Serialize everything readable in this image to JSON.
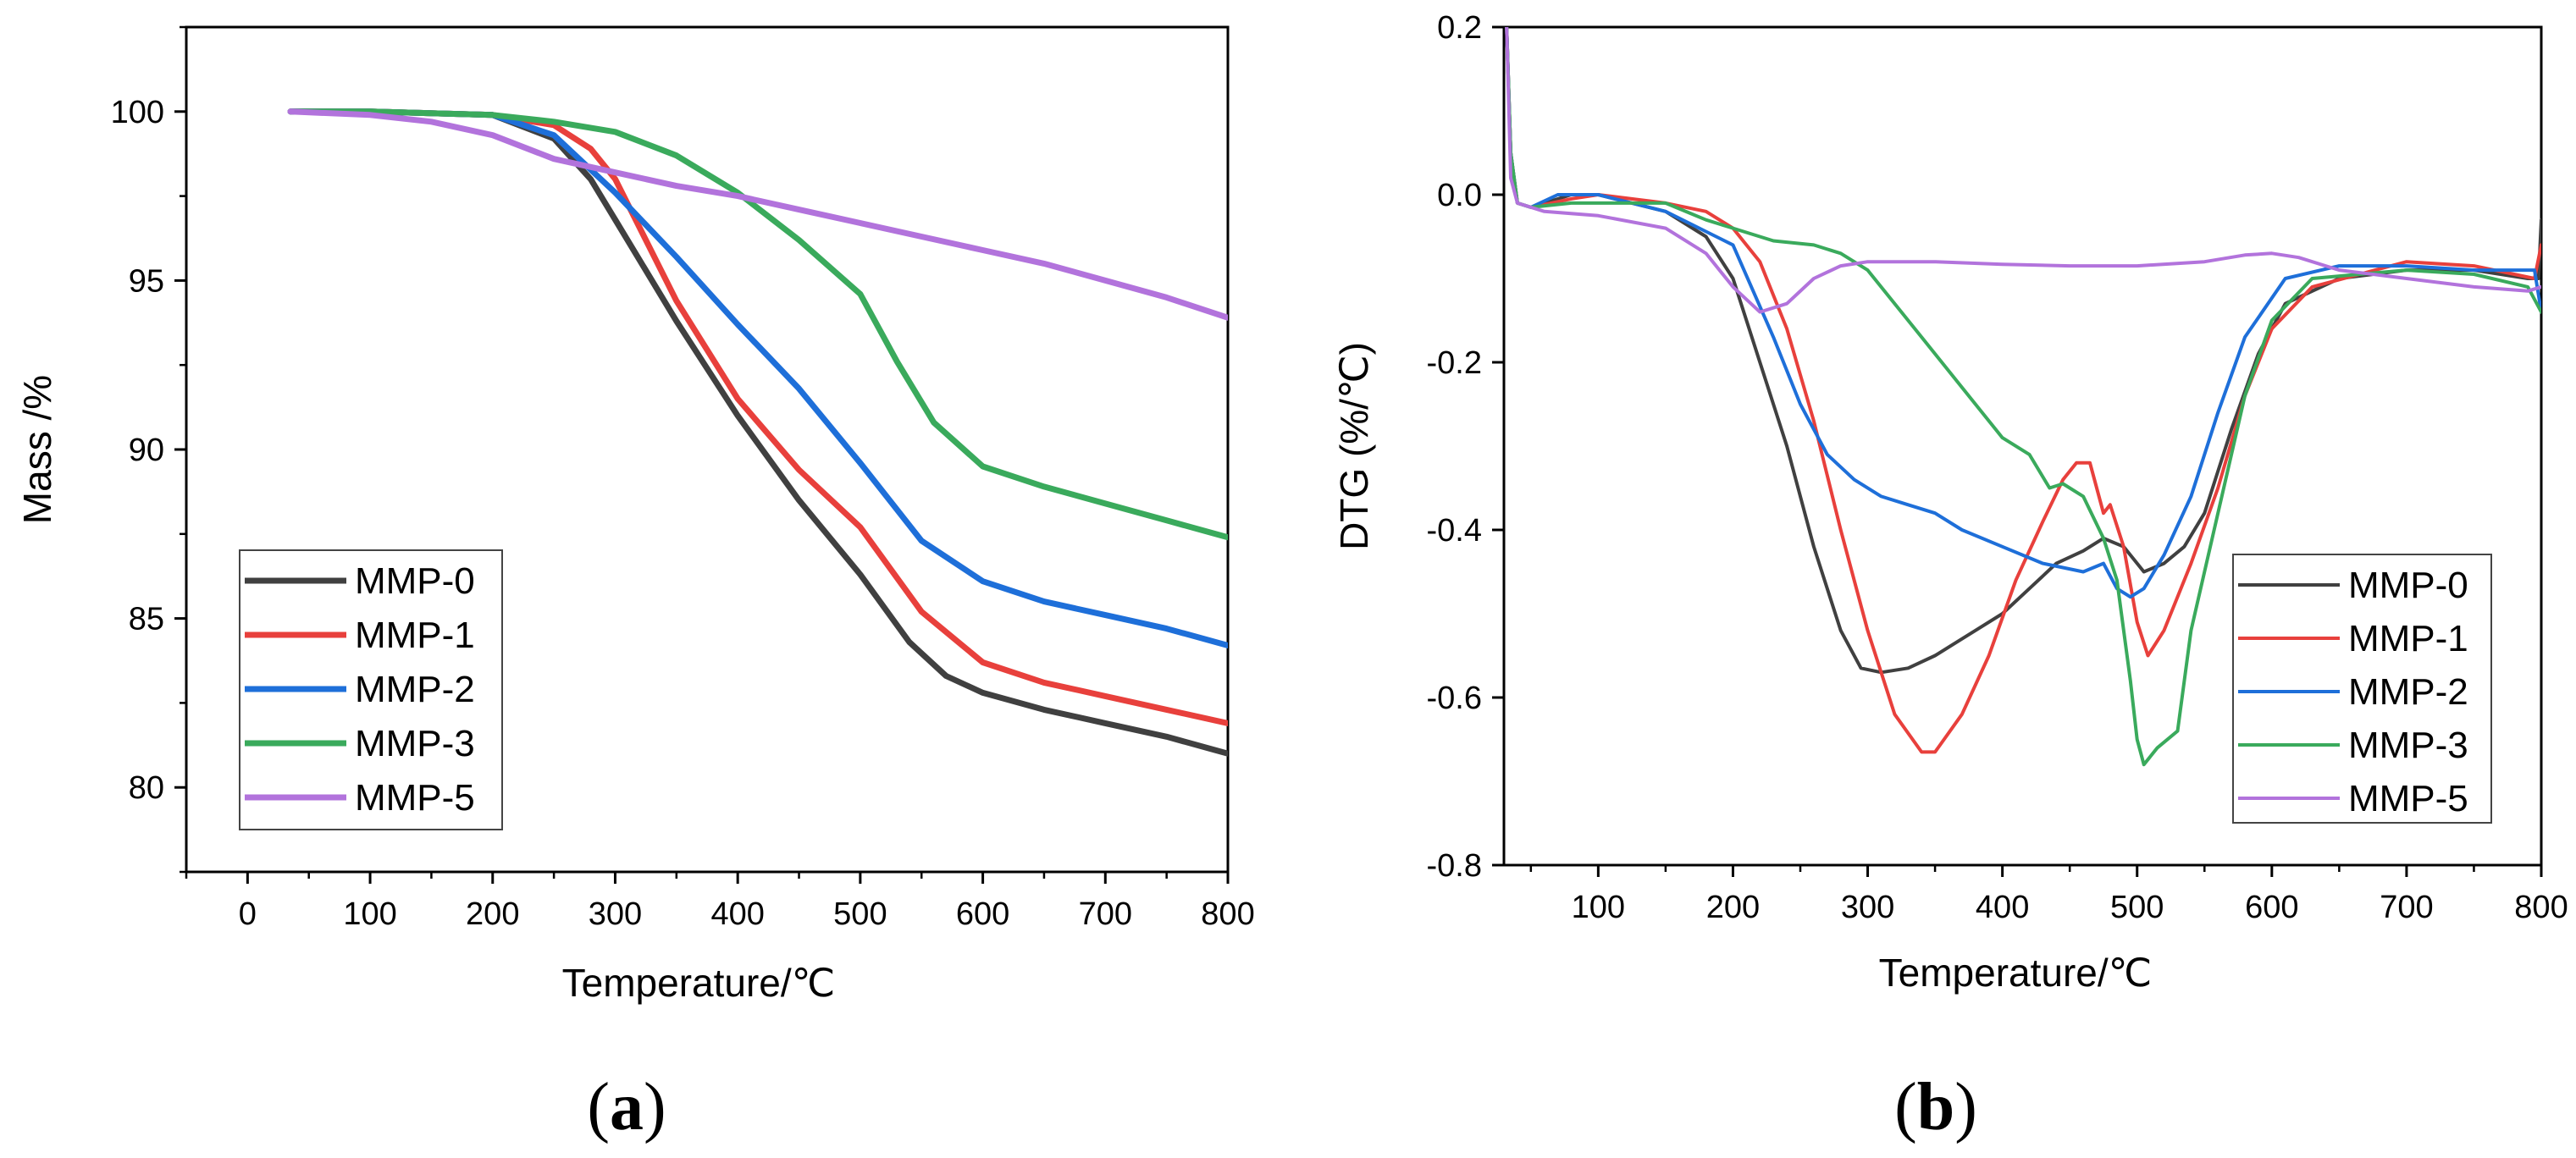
{
  "chart_data": [
    {
      "type": "line",
      "panel_label": "a",
      "xlabel": "Temperature/℃",
      "ylabel": "Mass /%",
      "xlim": [
        -50,
        800
      ],
      "ylim": [
        77.5,
        102.5
      ],
      "xticks": [
        0,
        100,
        200,
        300,
        400,
        500,
        600,
        700,
        800
      ],
      "yticks": [
        80,
        85,
        90,
        95,
        100
      ],
      "legend_position": "lower-left",
      "series": [
        {
          "name": "MMP-0",
          "color": "#404040",
          "points": [
            [
              35,
              100
            ],
            [
              100,
              100
            ],
            [
              200,
              99.9
            ],
            [
              250,
              99.2
            ],
            [
              280,
              98
            ],
            [
              300,
              96.8
            ],
            [
              350,
              93.8
            ],
            [
              400,
              91
            ],
            [
              450,
              88.5
            ],
            [
              500,
              86.3
            ],
            [
              540,
              84.3
            ],
            [
              570,
              83.3
            ],
            [
              600,
              82.8
            ],
            [
              650,
              82.3
            ],
            [
              700,
              81.9
            ],
            [
              750,
              81.5
            ],
            [
              800,
              81
            ]
          ]
        },
        {
          "name": "MMP-1",
          "color": "#e8403c",
          "points": [
            [
              35,
              100
            ],
            [
              100,
              100
            ],
            [
              200,
              99.9
            ],
            [
              250,
              99.6
            ],
            [
              280,
              98.9
            ],
            [
              300,
              98
            ],
            [
              350,
              94.4
            ],
            [
              400,
              91.5
            ],
            [
              450,
              89.4
            ],
            [
              500,
              87.7
            ],
            [
              550,
              85.2
            ],
            [
              600,
              83.7
            ],
            [
              650,
              83.1
            ],
            [
              700,
              82.7
            ],
            [
              750,
              82.3
            ],
            [
              800,
              81.9
            ]
          ]
        },
        {
          "name": "MMP-2",
          "color": "#1e6fd9",
          "points": [
            [
              35,
              100
            ],
            [
              100,
              100
            ],
            [
              200,
              99.9
            ],
            [
              250,
              99.3
            ],
            [
              300,
              97.6
            ],
            [
              350,
              95.7
            ],
            [
              400,
              93.7
            ],
            [
              450,
              91.8
            ],
            [
              500,
              89.6
            ],
            [
              550,
              87.3
            ],
            [
              600,
              86.1
            ],
            [
              650,
              85.5
            ],
            [
              700,
              85.1
            ],
            [
              750,
              84.7
            ],
            [
              800,
              84.2
            ]
          ]
        },
        {
          "name": "MMP-3",
          "color": "#3aaa5c",
          "points": [
            [
              35,
              100
            ],
            [
              100,
              100
            ],
            [
              200,
              99.9
            ],
            [
              250,
              99.7
            ],
            [
              300,
              99.4
            ],
            [
              350,
              98.7
            ],
            [
              400,
              97.6
            ],
            [
              450,
              96.2
            ],
            [
              500,
              94.6
            ],
            [
              530,
              92.6
            ],
            [
              560,
              90.8
            ],
            [
              600,
              89.5
            ],
            [
              650,
              88.9
            ],
            [
              700,
              88.4
            ],
            [
              750,
              87.9
            ],
            [
              800,
              87.4
            ]
          ]
        },
        {
          "name": "MMP-5",
          "color": "#b273dc",
          "points": [
            [
              35,
              100
            ],
            [
              100,
              99.9
            ],
            [
              150,
              99.7
            ],
            [
              200,
              99.3
            ],
            [
              250,
              98.6
            ],
            [
              300,
              98.2
            ],
            [
              350,
              97.8
            ],
            [
              400,
              97.5
            ],
            [
              450,
              97.1
            ],
            [
              500,
              96.7
            ],
            [
              550,
              96.3
            ],
            [
              600,
              95.9
            ],
            [
              650,
              95.5
            ],
            [
              700,
              95
            ],
            [
              750,
              94.5
            ],
            [
              800,
              93.9
            ]
          ]
        }
      ]
    },
    {
      "type": "line",
      "panel_label": "b",
      "xlabel": "Temperature/℃",
      "ylabel": "DTG (%/℃)",
      "xlim": [
        30,
        800
      ],
      "ylim": [
        -0.8,
        0.2
      ],
      "xticks": [
        100,
        200,
        300,
        400,
        500,
        600,
        700,
        800
      ],
      "yticks": [
        -0.8,
        -0.6,
        -0.4,
        -0.2,
        0.0,
        0.2
      ],
      "legend_position": "lower-right",
      "series": [
        {
          "name": "MMP-0",
          "color": "#404040",
          "points": [
            [
              32,
              0.2
            ],
            [
              35,
              0.05
            ],
            [
              40,
              -0.01
            ],
            [
              50,
              -0.015
            ],
            [
              80,
              0
            ],
            [
              100,
              0
            ],
            [
              150,
              -0.02
            ],
            [
              180,
              -0.05
            ],
            [
              200,
              -0.1
            ],
            [
              220,
              -0.2
            ],
            [
              240,
              -0.3
            ],
            [
              260,
              -0.42
            ],
            [
              280,
              -0.52
            ],
            [
              295,
              -0.565
            ],
            [
              310,
              -0.57
            ],
            [
              330,
              -0.565
            ],
            [
              350,
              -0.55
            ],
            [
              380,
              -0.52
            ],
            [
              400,
              -0.5
            ],
            [
              420,
              -0.47
            ],
            [
              440,
              -0.44
            ],
            [
              460,
              -0.425
            ],
            [
              475,
              -0.41
            ],
            [
              490,
              -0.42
            ],
            [
              505,
              -0.45
            ],
            [
              520,
              -0.44
            ],
            [
              535,
              -0.42
            ],
            [
              550,
              -0.38
            ],
            [
              570,
              -0.28
            ],
            [
              590,
              -0.19
            ],
            [
              610,
              -0.13
            ],
            [
              650,
              -0.1
            ],
            [
              700,
              -0.09
            ],
            [
              750,
              -0.09
            ],
            [
              790,
              -0.1
            ],
            [
              798,
              -0.1
            ],
            [
              800,
              -0.03
            ]
          ]
        },
        {
          "name": "MMP-1",
          "color": "#e8403c",
          "points": [
            [
              32,
              0.2
            ],
            [
              35,
              0.05
            ],
            [
              40,
              -0.01
            ],
            [
              50,
              -0.015
            ],
            [
              80,
              -0.005
            ],
            [
              100,
              0
            ],
            [
              150,
              -0.01
            ],
            [
              180,
              -0.02
            ],
            [
              200,
              -0.04
            ],
            [
              220,
              -0.08
            ],
            [
              240,
              -0.16
            ],
            [
              260,
              -0.27
            ],
            [
              280,
              -0.4
            ],
            [
              300,
              -0.52
            ],
            [
              320,
              -0.62
            ],
            [
              340,
              -0.665
            ],
            [
              350,
              -0.665
            ],
            [
              370,
              -0.62
            ],
            [
              390,
              -0.55
            ],
            [
              410,
              -0.46
            ],
            [
              430,
              -0.39
            ],
            [
              445,
              -0.34
            ],
            [
              455,
              -0.32
            ],
            [
              465,
              -0.32
            ],
            [
              475,
              -0.38
            ],
            [
              480,
              -0.37
            ],
            [
              490,
              -0.42
            ],
            [
              500,
              -0.51
            ],
            [
              508,
              -0.55
            ],
            [
              520,
              -0.52
            ],
            [
              540,
              -0.44
            ],
            [
              560,
              -0.35
            ],
            [
              580,
              -0.24
            ],
            [
              600,
              -0.16
            ],
            [
              630,
              -0.11
            ],
            [
              700,
              -0.08
            ],
            [
              750,
              -0.085
            ],
            [
              795,
              -0.1
            ],
            [
              800,
              -0.06
            ]
          ]
        },
        {
          "name": "MMP-2",
          "color": "#1e6fd9",
          "points": [
            [
              32,
              0.2
            ],
            [
              35,
              0.05
            ],
            [
              40,
              -0.01
            ],
            [
              50,
              -0.015
            ],
            [
              70,
              0
            ],
            [
              100,
              0
            ],
            [
              150,
              -0.02
            ],
            [
              200,
              -0.06
            ],
            [
              230,
              -0.17
            ],
            [
              250,
              -0.25
            ],
            [
              270,
              -0.31
            ],
            [
              290,
              -0.34
            ],
            [
              310,
              -0.36
            ],
            [
              330,
              -0.37
            ],
            [
              350,
              -0.38
            ],
            [
              370,
              -0.4
            ],
            [
              400,
              -0.42
            ],
            [
              430,
              -0.44
            ],
            [
              460,
              -0.45
            ],
            [
              475,
              -0.44
            ],
            [
              485,
              -0.47
            ],
            [
              495,
              -0.48
            ],
            [
              505,
              -0.47
            ],
            [
              520,
              -0.43
            ],
            [
              540,
              -0.36
            ],
            [
              560,
              -0.26
            ],
            [
              580,
              -0.17
            ],
            [
              610,
              -0.1
            ],
            [
              650,
              -0.085
            ],
            [
              700,
              -0.085
            ],
            [
              750,
              -0.09
            ],
            [
              795,
              -0.09
            ],
            [
              800,
              -0.14
            ]
          ]
        },
        {
          "name": "MMP-3",
          "color": "#3aaa5c",
          "points": [
            [
              32,
              0.2
            ],
            [
              35,
              0.05
            ],
            [
              40,
              -0.01
            ],
            [
              50,
              -0.015
            ],
            [
              80,
              -0.01
            ],
            [
              100,
              -0.01
            ],
            [
              150,
              -0.01
            ],
            [
              180,
              -0.03
            ],
            [
              200,
              -0.04
            ],
            [
              230,
              -0.055
            ],
            [
              260,
              -0.06
            ],
            [
              280,
              -0.07
            ],
            [
              300,
              -0.09
            ],
            [
              320,
              -0.13
            ],
            [
              340,
              -0.17
            ],
            [
              360,
              -0.21
            ],
            [
              380,
              -0.25
            ],
            [
              400,
              -0.29
            ],
            [
              420,
              -0.31
            ],
            [
              435,
              -0.35
            ],
            [
              445,
              -0.345
            ],
            [
              460,
              -0.36
            ],
            [
              475,
              -0.41
            ],
            [
              485,
              -0.46
            ],
            [
              495,
              -0.58
            ],
            [
              500,
              -0.65
            ],
            [
              505,
              -0.68
            ],
            [
              515,
              -0.66
            ],
            [
              530,
              -0.64
            ],
            [
              540,
              -0.52
            ],
            [
              560,
              -0.38
            ],
            [
              580,
              -0.24
            ],
            [
              600,
              -0.15
            ],
            [
              630,
              -0.1
            ],
            [
              700,
              -0.09
            ],
            [
              750,
              -0.095
            ],
            [
              790,
              -0.11
            ],
            [
              800,
              -0.14
            ]
          ]
        },
        {
          "name": "MMP-5",
          "color": "#b273dc",
          "points": [
            [
              32,
              0.2
            ],
            [
              35,
              0.02
            ],
            [
              40,
              -0.01
            ],
            [
              60,
              -0.02
            ],
            [
              100,
              -0.025
            ],
            [
              150,
              -0.04
            ],
            [
              180,
              -0.07
            ],
            [
              200,
              -0.11
            ],
            [
              220,
              -0.14
            ],
            [
              240,
              -0.13
            ],
            [
              260,
              -0.1
            ],
            [
              280,
              -0.085
            ],
            [
              300,
              -0.08
            ],
            [
              350,
              -0.08
            ],
            [
              400,
              -0.083
            ],
            [
              450,
              -0.085
            ],
            [
              500,
              -0.085
            ],
            [
              550,
              -0.08
            ],
            [
              580,
              -0.072
            ],
            [
              600,
              -0.07
            ],
            [
              620,
              -0.075
            ],
            [
              650,
              -0.09
            ],
            [
              700,
              -0.1
            ],
            [
              750,
              -0.11
            ],
            [
              790,
              -0.115
            ],
            [
              800,
              -0.11
            ]
          ]
        }
      ]
    }
  ]
}
